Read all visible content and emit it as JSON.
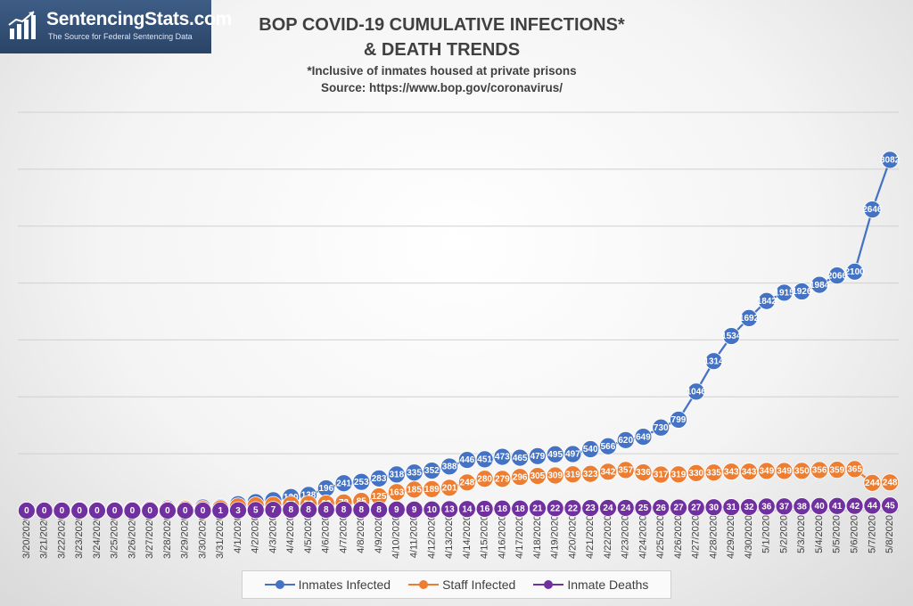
{
  "logo": {
    "name": "SentencingStats.com",
    "tagline": "The Source for Federal Sentencing Data",
    "icon": "bar-chart-trend-icon"
  },
  "chart_data": {
    "type": "line",
    "title": "BOP COVID-19 CUMULATIVE INFECTIONS* & DEATH TRENDS",
    "title_lines": [
      "BOP COVID-19 CUMULATIVE INFECTIONS*",
      "& DEATH TRENDS"
    ],
    "subtitle_lines": [
      "*Inclusive of inmates housed at private prisons",
      "Source: https://www.bop.gov/coronavirus/"
    ],
    "xlabel": "",
    "ylabel": "",
    "ylim": [
      0,
      3500
    ],
    "grid": "horizontal",
    "legend_position": "bottom",
    "categories": [
      "3/20/2020",
      "3/21/2020",
      "3/22/2020",
      "3/23/2020",
      "3/24/2020",
      "3/25/2020",
      "3/26/2020",
      "3/27/2020",
      "3/28/2020",
      "3/29/2020",
      "3/30/2020",
      "3/31/2020",
      "4/1/2020",
      "4/2/2020",
      "4/3/2020",
      "4/4/2020",
      "4/5/2020",
      "4/6/2020",
      "4/7/2020",
      "4/8/2020",
      "4/9/2020",
      "4/10/2020",
      "4/11/2020",
      "4/12/2020",
      "4/13/2020",
      "4/14/2020",
      "4/15/2020",
      "4/16/2020",
      "4/17/2020",
      "4/18/2020",
      "4/19/2020",
      "4/20/2020",
      "4/21/2020",
      "4/22/2020",
      "4/23/2020",
      "4/24/2020",
      "4/25/2020",
      "4/26/2020",
      "4/27/2020",
      "4/28/2020",
      "4/29/2020",
      "4/30/2020",
      "5/1/2020",
      "5/2/2020",
      "5/3/2020",
      "5/4/2020",
      "5/5/2020",
      "5/6/2020",
      "5/7/2020",
      "5/8/2020"
    ],
    "series": [
      {
        "name": "Inmates Infected",
        "color": "#4472c4",
        "values": [
          0,
          1,
          1,
          6,
          6,
          6,
          10,
          14,
          19,
          19,
          28,
          29,
          57,
          75,
          91,
          120,
          138,
          196,
          241,
          253,
          283,
          318,
          335,
          352,
          388,
          446,
          451,
          473,
          465,
          479,
          495,
          497,
          540,
          566,
          620,
          649,
          730,
          799,
          1046,
          1314,
          1534,
          1692,
          1842,
          1915,
          1926,
          1984,
          2066,
          2100,
          2646,
          3082
        ]
      },
      {
        "name": "Staff Infected",
        "color": "#ed7d31",
        "values": [
          0,
          0,
          0,
          0,
          0,
          0,
          8,
          9,
          10,
          12,
          14,
          20,
          37,
          46,
          50,
          54,
          59,
          63,
          72,
          85,
          125,
          163,
          185,
          189,
          201,
          248,
          280,
          279,
          296,
          305,
          309,
          319,
          323,
          342,
          357,
          336,
          317,
          319,
          330,
          335,
          343,
          343,
          349,
          349,
          350,
          356,
          359,
          365,
          244,
          248
        ]
      },
      {
        "name": "Inmate Deaths",
        "color": "#7030a0",
        "values": [
          0,
          0,
          0,
          0,
          0,
          0,
          0,
          0,
          0,
          0,
          0,
          1,
          3,
          5,
          7,
          8,
          8,
          8,
          8,
          8,
          8,
          9,
          9,
          10,
          13,
          14,
          16,
          18,
          18,
          21,
          22,
          22,
          23,
          24,
          24,
          25,
          26,
          27,
          27,
          30,
          31,
          32,
          36,
          37,
          38,
          40,
          41,
          42,
          44,
          45
        ]
      }
    ]
  }
}
